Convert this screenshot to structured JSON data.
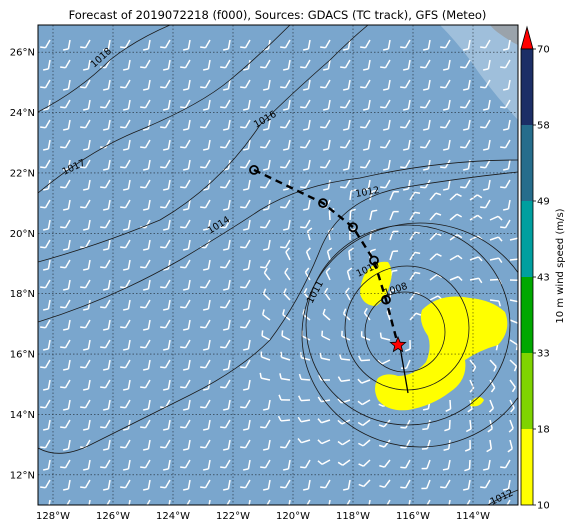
{
  "title": "Forecast of 2019072218 (f000), Sources: GDACS (TC track), GFS (Meteo)",
  "map": {
    "lon_range": [
      -128.5,
      -112.5
    ],
    "lat_range": [
      11.0,
      26.9
    ],
    "lon_ticks": [
      "128°W",
      "126°W",
      "124°W",
      "122°W",
      "120°W",
      "118°W",
      "116°W",
      "114°W"
    ],
    "lat_ticks": [
      "12°N",
      "14°N",
      "16°N",
      "18°N",
      "20°N",
      "22°N",
      "24°N",
      "26°N"
    ],
    "grid": true,
    "ocean_color": "#7aa6cd",
    "wind_barb_color": "#ffffff",
    "wind_above_10ms_color": "#ffff00",
    "storm_marker": "red-star",
    "storm_position": {
      "lon": -116.5,
      "lat": 16.3
    }
  },
  "isobars": {
    "labels": [
      "1018",
      "1016",
      "1017",
      "1014",
      "1012",
      "1010",
      "1011",
      "1008",
      "1012"
    ]
  },
  "track": {
    "past_points": [
      {
        "lon": -121.3,
        "lat": 22.1
      },
      {
        "lon": -119.0,
        "lat": 21.0
      },
      {
        "lon": -118.0,
        "lat": 20.2
      },
      {
        "lon": -117.3,
        "lat": 19.1
      },
      {
        "lon": -116.9,
        "lat": 17.8
      }
    ],
    "current": {
      "lon": -116.5,
      "lat": 16.3
    }
  },
  "colorbar": {
    "label": "10 m wind speed (m/s)",
    "ticks": [
      "10",
      "18",
      "33",
      "43",
      "49",
      "58",
      "70"
    ],
    "colors": [
      "#ffff00",
      "#7fd400",
      "#00a800",
      "#009f9f",
      "#266d8c",
      "#1c2e66"
    ],
    "arrow_color": "#ff0000"
  }
}
